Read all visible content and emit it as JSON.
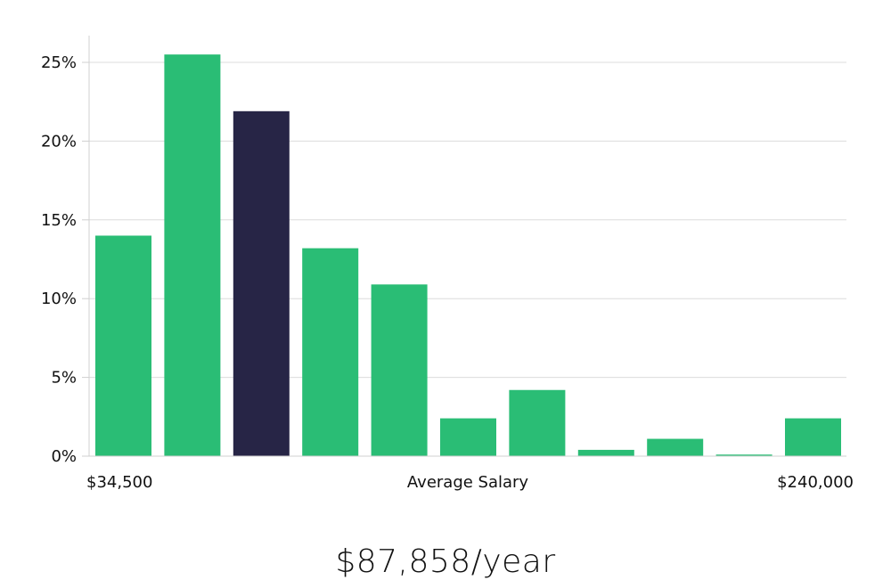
{
  "chart_data": {
    "type": "bar",
    "ylim": [
      0,
      27
    ],
    "yticks": [
      {
        "value": 0,
        "label": "0%"
      },
      {
        "value": 5,
        "label": "5%"
      },
      {
        "value": 10,
        "label": "10%"
      },
      {
        "value": 15,
        "label": "15%"
      },
      {
        "value": 20,
        "label": "20%"
      },
      {
        "value": 25,
        "label": "25%"
      }
    ],
    "values": [
      14.0,
      25.5,
      21.9,
      13.2,
      10.9,
      2.4,
      4.2,
      0.4,
      1.1,
      0.1,
      2.4
    ],
    "highlight_index": 2,
    "x_labels": {
      "min": "$34,500",
      "middle": "Average Salary",
      "max": "$240,000"
    },
    "grid": true,
    "colors": {
      "bar": "#2abd75",
      "highlight": "#272546",
      "grid": "#dcdcdc",
      "axis": "#d0d0d0"
    }
  },
  "caption": "$87,858/year"
}
